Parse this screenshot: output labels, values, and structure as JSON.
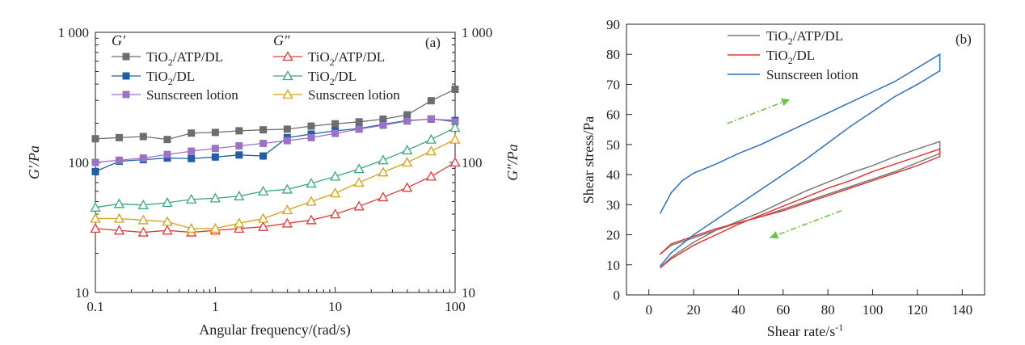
{
  "colors": {
    "gray": "#6d6d6d",
    "blue": "#1f5fa8",
    "purple": "#9b72c4",
    "red": "#e03b3b",
    "green": "#3aa87c",
    "gold": "#d4a017",
    "arrow": "#6cc24a",
    "sunscreen_line": "#2f6fbd",
    "tio2dl_line": "#e03b3b",
    "tio2atp_line": "#7a7a7a"
  },
  "chart_data": [
    {
      "type": "line",
      "panel_label": "(a)",
      "xlabel": "Angular frequency/(rad/s)",
      "ylabel_left": "G′/Pa",
      "ylabel_right": "G″/Pa",
      "xscale": "log",
      "yscale": "log",
      "xlim": [
        0.1,
        100
      ],
      "ylim": [
        10,
        1000
      ],
      "xticks": [
        0.1,
        1,
        10,
        100
      ],
      "xtick_labels": [
        "0.1",
        "1",
        "10",
        "100"
      ],
      "yticks": [
        10,
        100,
        1000
      ],
      "ytick_labels": [
        "10",
        "100",
        "1 000"
      ],
      "legend_group_labels": [
        "G′",
        "G″"
      ],
      "x": [
        0.1,
        0.158,
        0.251,
        0.398,
        0.631,
        1,
        1.58,
        2.51,
        3.98,
        6.31,
        10,
        15.8,
        25.1,
        39.8,
        63.1,
        100
      ],
      "series": [
        {
          "name": "TiO2/ATP/DL",
          "name_main": "TiO",
          "name_sub": "2",
          "name_rest": "/ATP/DL",
          "group": "G′",
          "marker": "square",
          "color_key": "gray",
          "values": [
            152,
            155,
            158,
            150,
            168,
            170,
            175,
            178,
            180,
            190,
            198,
            205,
            215,
            232,
            298,
            365
          ]
        },
        {
          "name": "TiO2/DL",
          "name_main": "TiO",
          "name_sub": "2",
          "name_rest": "/DL",
          "group": "G′",
          "marker": "square",
          "color_key": "blue",
          "values": [
            85,
            102,
            105,
            108,
            107,
            110,
            114,
            112,
            155,
            165,
            175,
            182,
            196,
            210,
            215,
            210
          ]
        },
        {
          "name": "Sunscreen lotion",
          "name_main": "Sunscreen lotion",
          "name_sub": "",
          "name_rest": "",
          "group": "G′",
          "marker": "square",
          "color_key": "purple",
          "values": [
            100,
            104,
            108,
            115,
            122,
            128,
            134,
            140,
            147,
            155,
            167,
            180,
            193,
            208,
            216,
            205
          ]
        },
        {
          "name": "TiO2/ATP/DL",
          "name_main": "TiO",
          "name_sub": "2",
          "name_rest": "/ATP/DL",
          "group": "G″",
          "marker": "triangle",
          "color_key": "red",
          "values": [
            31,
            30,
            29,
            30,
            29,
            30,
            31,
            32,
            34,
            36,
            40,
            46,
            54,
            64,
            78,
            100
          ]
        },
        {
          "name": "TiO2/DL",
          "name_main": "TiO",
          "name_sub": "2",
          "name_rest": "/DL",
          "group": "G″",
          "marker": "triangle",
          "color_key": "green",
          "values": [
            45,
            48,
            47,
            49,
            52,
            53,
            55,
            60,
            62,
            69,
            78,
            89,
            104,
            124,
            150,
            185
          ]
        },
        {
          "name": "Sunscreen lotion",
          "name_main": "Sunscreen lotion",
          "name_sub": "",
          "name_rest": "",
          "group": "G″",
          "marker": "triangle",
          "color_key": "gold",
          "values": [
            37,
            37,
            36,
            35,
            31,
            31,
            34,
            37,
            43,
            50,
            58,
            70,
            84,
            100,
            122,
            150
          ]
        }
      ]
    },
    {
      "type": "line",
      "panel_label": "(b)",
      "xlabel_main": "Shear rate/s",
      "xlabel_sup": "-1",
      "ylabel": "Shear stress/Pa",
      "xlim": [
        -10,
        150
      ],
      "ylim": [
        0,
        90
      ],
      "xticks": [
        0,
        20,
        40,
        60,
        80,
        100,
        120,
        140
      ],
      "yticks": [
        0,
        10,
        20,
        30,
        40,
        50,
        60,
        70,
        80,
        90
      ],
      "series": [
        {
          "name": "TiO2/ATP/DL",
          "name_main": "TiO",
          "name_sub": "2",
          "name_rest": "/ATP/DL",
          "color_key": "tio2atp_line",
          "up": {
            "x": [
              5,
              10,
              20,
              30,
              40,
              50,
              60,
              70,
              80,
              90,
              100,
              110,
              120,
              130
            ],
            "y": [
              9,
              12.5,
              17.5,
              21.5,
              24.5,
              27.5,
              31,
              34.5,
              37.5,
              40.5,
              43,
              46,
              48.5,
              51
            ]
          },
          "down": {
            "x": [
              130,
              120,
              110,
              100,
              90,
              80,
              70,
              60,
              50,
              40,
              30,
              20,
              10,
              5
            ],
            "y": [
              47,
              44,
              41,
              38.5,
              36,
              33.5,
              31,
              28.5,
              26,
              24,
              21.5,
              19,
              16.5,
              13.5
            ]
          }
        },
        {
          "name": "TiO2/DL",
          "name_main": "TiO",
          "name_sub": "2",
          "name_rest": "/DL",
          "color_key": "tio2dl_line",
          "up": {
            "x": [
              5,
              10,
              20,
              30,
              40,
              50,
              60,
              70,
              80,
              90,
              100,
              110,
              120,
              130
            ],
            "y": [
              9,
              12,
              16.5,
              20,
              23.5,
              26.5,
              29.5,
              32.5,
              35.5,
              38,
              41,
              43.5,
              46,
              48.5
            ]
          },
          "down": {
            "x": [
              130,
              120,
              110,
              100,
              90,
              80,
              70,
              60,
              50,
              40,
              30,
              20,
              10,
              5
            ],
            "y": [
              46,
              43,
              40.5,
              38,
              35.5,
              33,
              30.5,
              28,
              26,
              24,
              22,
              19.5,
              17,
              13.5
            ]
          }
        },
        {
          "name": "Sunscreen lotion",
          "name_main": "Sunscreen lotion",
          "name_sub": "",
          "name_rest": "",
          "color_key": "sunscreen_line",
          "up": {
            "x": [
              5,
              10,
              15,
              20,
              30,
              40,
              50,
              60,
              70,
              80,
              90,
              100,
              110,
              120,
              130
            ],
            "y": [
              27,
              34,
              38,
              40.5,
              43.5,
              47,
              50,
              53.5,
              57,
              60.5,
              64,
              67.5,
              71,
              75.5,
              80
            ]
          },
          "down": {
            "x": [
              130,
              120,
              110,
              100,
              90,
              80,
              70,
              60,
              50,
              40,
              30,
              20,
              10,
              5
            ],
            "y": [
              74.5,
              70,
              66,
              61,
              56,
              50.5,
              45,
              40,
              35,
              30,
              25,
              20,
              14,
              9.5
            ]
          }
        }
      ]
    }
  ]
}
